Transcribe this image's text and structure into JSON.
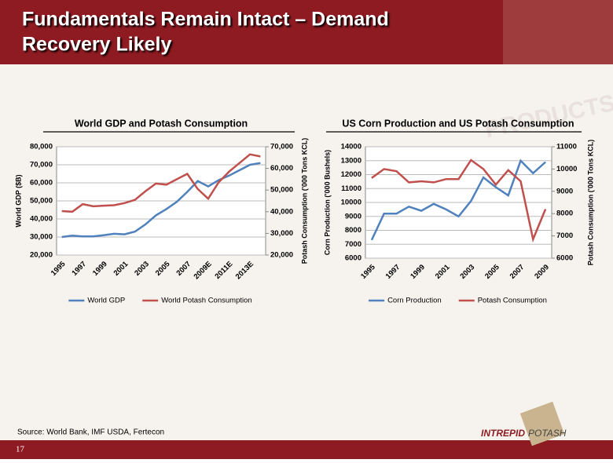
{
  "header": {
    "title_lines": [
      "Fundamentals Remain Intact – Demand",
      "Recovery Likely"
    ],
    "watermark": "PRODUCTS"
  },
  "footer": {
    "source": "Source: World Bank, IMF USDA, Fertecon",
    "page_number": "17",
    "logo": [
      "INTREPID",
      "POTASH"
    ]
  },
  "chart_data": [
    {
      "type": "line",
      "title": "World GDP and Potash Consumption",
      "y_label": "World GDP ($B)",
      "y2_label": "Potash Consumption ('000 Tons KCL)",
      "categories": [
        "1995",
        null,
        "1997",
        null,
        "1999",
        null,
        "2001",
        null,
        "2003",
        null,
        "2005",
        null,
        "2007",
        null,
        "2009E",
        null,
        "2011E",
        null,
        "2013E",
        null
      ],
      "series": [
        {
          "name": "World GDP",
          "color": "#4f81bd",
          "values": [
            30000,
            30800,
            30300,
            30300,
            31000,
            31800,
            31500,
            33000,
            37000,
            42000,
            45500,
            49500,
            55000,
            61000,
            58000,
            61500,
            64000,
            67000,
            70000,
            71000
          ]
        },
        {
          "name": "World Potash Consumption",
          "color": "#c0504d",
          "axis": "y2",
          "values": [
            40300,
            40000,
            43500,
            42500,
            42800,
            43000,
            44000,
            45500,
            49500,
            53000,
            52500,
            55000,
            57500,
            50500,
            46000,
            53500,
            58500,
            62500,
            66500,
            65500
          ]
        }
      ],
      "ylim": [
        20000,
        80000
      ],
      "yticks": [
        {
          "value": 20000,
          "label": "20,000"
        },
        {
          "value": 30000,
          "label": "30,000"
        },
        {
          "value": 40000,
          "label": "40,000"
        },
        {
          "value": 50000,
          "label": "50,000"
        },
        {
          "value": 60000,
          "label": "60,000"
        },
        {
          "value": 70000,
          "label": "70,000"
        },
        {
          "value": 80000,
          "label": "80,000"
        }
      ],
      "y2lim": [
        20000,
        70000
      ],
      "y2ticks": [
        {
          "value": 20000,
          "label": "20,000"
        },
        {
          "value": 30000,
          "label": "30,000"
        },
        {
          "value": 40000,
          "label": "40,000"
        },
        {
          "value": 50000,
          "label": "50,000"
        },
        {
          "value": 60000,
          "label": "60,000"
        },
        {
          "value": 70000,
          "label": "70,000"
        }
      ],
      "grid": true,
      "legend": "bottom"
    },
    {
      "type": "line",
      "title": "US Corn Production and US Potash Consumption",
      "y_label": "Corn Production ('000 Bushels)",
      "y2_label": "Potash Consumption ('000 Tons KCL)",
      "categories": [
        "1995",
        null,
        "1997",
        null,
        "1999",
        null,
        "2001",
        null,
        "2003",
        null,
        "2005",
        null,
        "2007",
        null,
        "2009"
      ],
      "series": [
        {
          "name": "Corn Production",
          "color": "#4f81bd",
          "values": [
            7300,
            9200,
            9200,
            9700,
            9400,
            9900,
            9500,
            9000,
            10100,
            11800,
            11100,
            10500,
            13000,
            12100,
            12900
          ]
        },
        {
          "name": "Potash Consumption",
          "color": "#c0504d",
          "axis": "y2",
          "values": [
            9600,
            10000,
            9900,
            9400,
            9450,
            9400,
            9550,
            9550,
            10400,
            10000,
            9300,
            9950,
            9450,
            6850,
            8200
          ]
        }
      ],
      "ylim": [
        6000,
        14000
      ],
      "yticks": [
        6000,
        7000,
        8000,
        9000,
        10000,
        11000,
        12000,
        13000,
        14000
      ],
      "y2lim": [
        6000,
        11000
      ],
      "y2ticks": [
        6000,
        7000,
        8000,
        9000,
        10000,
        11000
      ],
      "grid": true,
      "legend": "bottom"
    }
  ]
}
